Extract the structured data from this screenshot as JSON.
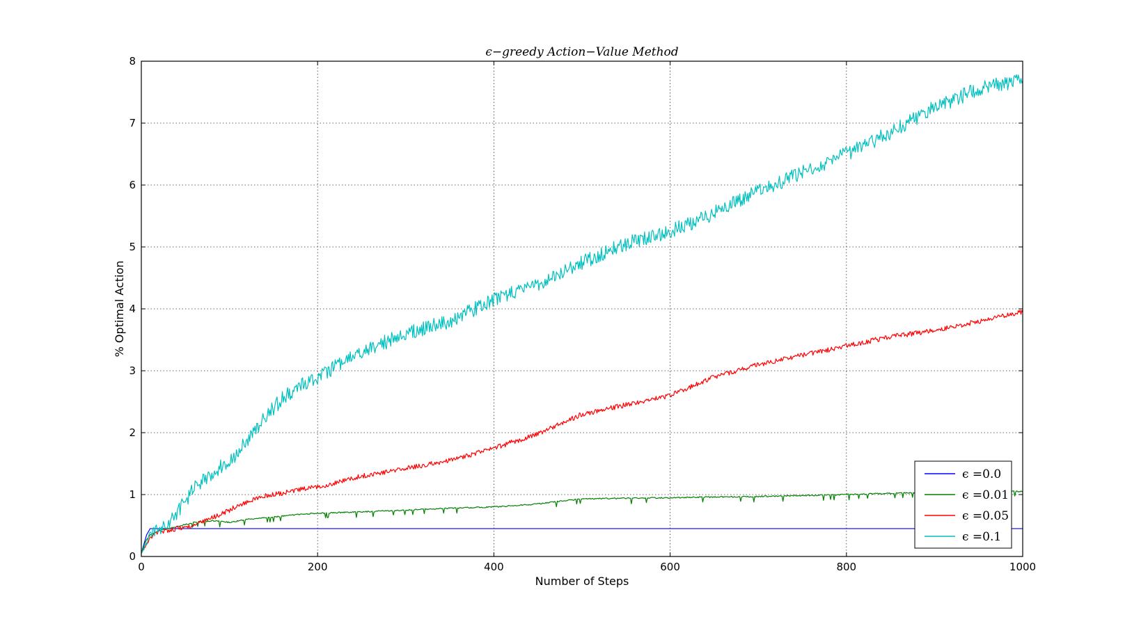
{
  "chart_data": {
    "type": "line",
    "title": "ϵ−greedy Action−Value Method",
    "xlabel": "Number of Steps",
    "ylabel": "% Optimal Action",
    "xlim": [
      0,
      1000
    ],
    "ylim": [
      0,
      8
    ],
    "x_ticks": [
      "0",
      "200",
      "400",
      "600",
      "800",
      "1000"
    ],
    "y_ticks": [
      "0",
      "1",
      "2",
      "3",
      "4",
      "5",
      "6",
      "7",
      "8"
    ],
    "grid": true,
    "legend_position": "lower-right",
    "series": [
      {
        "name": "ϵ =0.0",
        "color": "#0000ff",
        "x": [
          0,
          3,
          6,
          8,
          10,
          1000
        ],
        "values": [
          0.05,
          0.2,
          0.35,
          0.4,
          0.45,
          0.45
        ]
      },
      {
        "name": "ϵ =0.01",
        "color": "#008000",
        "x": [
          0,
          5,
          10,
          20,
          40,
          60,
          80,
          100,
          120,
          140,
          160,
          180,
          200,
          250,
          300,
          350,
          400,
          450,
          480,
          500,
          600,
          700,
          800,
          850,
          900,
          950,
          1000
        ],
        "values": [
          0.05,
          0.25,
          0.35,
          0.42,
          0.48,
          0.55,
          0.58,
          0.55,
          0.6,
          0.63,
          0.65,
          0.68,
          0.7,
          0.72,
          0.75,
          0.78,
          0.8,
          0.85,
          0.9,
          0.93,
          0.95,
          0.97,
          1.0,
          1.02,
          1.03,
          1.05,
          1.05
        ]
      },
      {
        "name": "ϵ =0.05",
        "color": "#ff0000",
        "x": [
          0,
          10,
          20,
          40,
          60,
          80,
          100,
          120,
          140,
          160,
          180,
          200,
          250,
          300,
          350,
          400,
          450,
          500,
          550,
          600,
          650,
          700,
          750,
          800,
          850,
          900,
          950,
          1000
        ],
        "values": [
          0.05,
          0.3,
          0.4,
          0.45,
          0.5,
          0.62,
          0.75,
          0.88,
          0.98,
          1.02,
          1.08,
          1.12,
          1.3,
          1.42,
          1.55,
          1.75,
          1.98,
          2.3,
          2.45,
          2.6,
          2.9,
          3.1,
          3.25,
          3.4,
          3.55,
          3.65,
          3.8,
          3.95
        ]
      },
      {
        "name": "ϵ =0.1",
        "color": "#00bfbf",
        "x": [
          0,
          10,
          20,
          30,
          40,
          50,
          60,
          80,
          100,
          120,
          140,
          160,
          180,
          200,
          250,
          300,
          350,
          400,
          450,
          500,
          550,
          600,
          650,
          700,
          750,
          800,
          850,
          900,
          950,
          1000
        ],
        "values": [
          0.05,
          0.35,
          0.45,
          0.5,
          0.7,
          0.9,
          1.1,
          1.35,
          1.55,
          1.85,
          2.25,
          2.55,
          2.75,
          2.9,
          3.3,
          3.6,
          3.8,
          4.15,
          4.4,
          4.75,
          5.05,
          5.25,
          5.55,
          5.9,
          6.2,
          6.5,
          6.85,
          7.25,
          7.55,
          7.7
        ]
      }
    ]
  }
}
